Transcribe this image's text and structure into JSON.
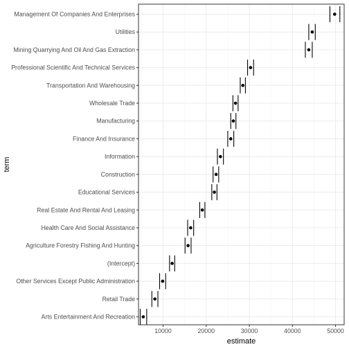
{
  "chart_data": {
    "type": "scatter",
    "subtype": "point-with-errorbars",
    "xlabel": "estimate",
    "ylabel": "term",
    "xlim": [
      4300,
      52000
    ],
    "x_ticks": [
      10000,
      20000,
      30000,
      40000,
      50000
    ],
    "x_tick_labels": [
      "10000",
      "20000",
      "30000",
      "40000",
      "50000"
    ],
    "grid": true,
    "theme": "bw",
    "colors": {
      "point": "#000000",
      "errorbar": "#000000",
      "grid_major": "#ebebeb",
      "grid_minor": "#f5f5f5",
      "panel_border": "#333333"
    },
    "terms": [
      "Management Of Companies And Enterprises",
      "Utilities",
      "Mining Quarrying And Oil And Gas Extraction",
      "Professional Scientific And Technical Services",
      "Transportation And Warehousing",
      "Wholesale Trade",
      "Manufacturing",
      "Finance And Insurance",
      "Information",
      "Construction",
      "Educational Services",
      "Real Estate And Rental And Leasing",
      "Health Care And Social Assistance",
      "Agriculture Forestry Fishing And Hunting",
      "(Intercept)",
      "Other Services Except Public Administration",
      "Retail Trade",
      "Arts Entertainment And Recreation"
    ],
    "estimates": [
      49800,
      44600,
      43800,
      30300,
      28500,
      26800,
      26300,
      25700,
      23300,
      22300,
      21900,
      19100,
      16400,
      15800,
      12100,
      9900,
      8100,
      5400
    ],
    "ci_low": [
      48700,
      43800,
      43000,
      29600,
      27900,
      26200,
      25700,
      25000,
      22600,
      21600,
      21300,
      18500,
      15700,
      15100,
      11500,
      9200,
      7400,
      4700
    ],
    "ci_high": [
      51000,
      45300,
      44600,
      31000,
      29100,
      27400,
      26900,
      26400,
      24000,
      22900,
      22500,
      19700,
      17100,
      16500,
      12700,
      10600,
      8800,
      6200
    ]
  }
}
